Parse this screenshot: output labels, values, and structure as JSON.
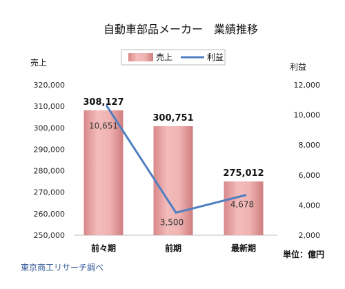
{
  "chart_data": {
    "type": "bar+line",
    "title": "自動車部品メーカー　業績推移",
    "categories": [
      "前々期",
      "前期",
      "最新期"
    ],
    "series": [
      {
        "name": "売上",
        "type": "bar",
        "axis": "left",
        "values": [
          308127,
          300751,
          275012
        ],
        "labels": [
          "308,127",
          "300,751",
          "275,012"
        ],
        "color": "#e9a6a6"
      },
      {
        "name": "利益",
        "type": "line",
        "axis": "right",
        "values": [
          10651,
          3500,
          4678
        ],
        "labels": [
          "10,651",
          "3,500",
          "4,678"
        ],
        "color": "#4f7fc0"
      }
    ],
    "left_axis": {
      "label": "売上",
      "min": 250000,
      "max": 320000,
      "ticks": [
        "250,000",
        "260,000",
        "270,000",
        "280,000",
        "290,000",
        "300,000",
        "310,000",
        "320,000"
      ]
    },
    "right_axis": {
      "label": "利益",
      "min": 2000,
      "max": 12000,
      "ticks": [
        "2,000",
        "4,000",
        "6,000",
        "8,000",
        "10,000",
        "12,000"
      ]
    },
    "legend_position": "top",
    "grid": false
  },
  "source": "東京商工リサーチ調べ",
  "unit": "単位：億円"
}
